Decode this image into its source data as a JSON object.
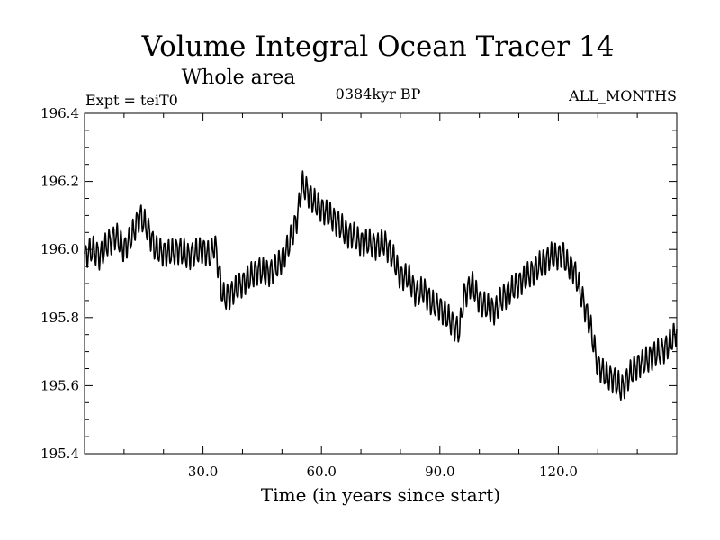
{
  "chart_data": {
    "type": "line",
    "title": "Volume Integral Ocean Tracer 14",
    "subtitle": "Whole area",
    "left_label": "Expt = teiT0",
    "center_label": "0384kyr BP",
    "right_label": "ALL_MONTHS",
    "xlabel": "Time (in years since start)",
    "ylabel": "",
    "xlim": [
      0,
      150
    ],
    "ylim": [
      195.4,
      196.4
    ],
    "xticks": [
      30.0,
      60.0,
      90.0,
      120.0
    ],
    "xtick_labels": [
      "30.0",
      "60.0",
      "90.0",
      "120.0"
    ],
    "xminor_step": 10,
    "yticks": [
      195.4,
      195.6,
      195.8,
      196.0,
      196.2,
      196.4
    ],
    "ytick_labels": [
      "195.4",
      "195.6",
      "195.8",
      "196.0",
      "196.2",
      "196.4"
    ],
    "yminor_step": 0.05,
    "grid": false,
    "line_color": "#000000",
    "series": [
      {
        "x": [
          0,
          2,
          4,
          6,
          8,
          10,
          12,
          14,
          16,
          18,
          20,
          22,
          24,
          26,
          28,
          30,
          32,
          33,
          35,
          36,
          38,
          40,
          42,
          44,
          46,
          48,
          50,
          52,
          54,
          55,
          56,
          58,
          60,
          62,
          64,
          66,
          68,
          70,
          72,
          74,
          76,
          78,
          80,
          82,
          84,
          86,
          88,
          90,
          92,
          94,
          95,
          96,
          98,
          100,
          102,
          104,
          106,
          108,
          110,
          112,
          114,
          116,
          118,
          120,
          121,
          122,
          124,
          126,
          128,
          130,
          132,
          134,
          136,
          138,
          140,
          142,
          144,
          146,
          148,
          150
        ],
        "y": [
          195.98,
          196.0,
          195.98,
          196.02,
          196.04,
          196.0,
          196.04,
          196.1,
          196.06,
          196.0,
          195.99,
          195.99,
          196.0,
          195.98,
          195.99,
          196.0,
          195.98,
          196.02,
          195.86,
          195.86,
          195.88,
          195.9,
          195.92,
          195.94,
          195.93,
          195.94,
          195.97,
          196.02,
          196.1,
          196.19,
          196.18,
          196.14,
          196.12,
          196.1,
          196.08,
          196.05,
          196.04,
          196.02,
          196.02,
          196.01,
          196.02,
          195.98,
          195.92,
          195.92,
          195.87,
          195.88,
          195.84,
          195.83,
          195.8,
          195.77,
          195.76,
          195.86,
          195.9,
          195.85,
          195.83,
          195.82,
          195.86,
          195.88,
          195.9,
          195.92,
          195.94,
          195.96,
          195.98,
          195.98,
          195.99,
          195.96,
          195.94,
          195.86,
          195.78,
          195.66,
          195.63,
          195.62,
          195.59,
          195.63,
          195.66,
          195.67,
          195.69,
          195.7,
          195.72,
          195.76
        ]
      }
    ]
  }
}
